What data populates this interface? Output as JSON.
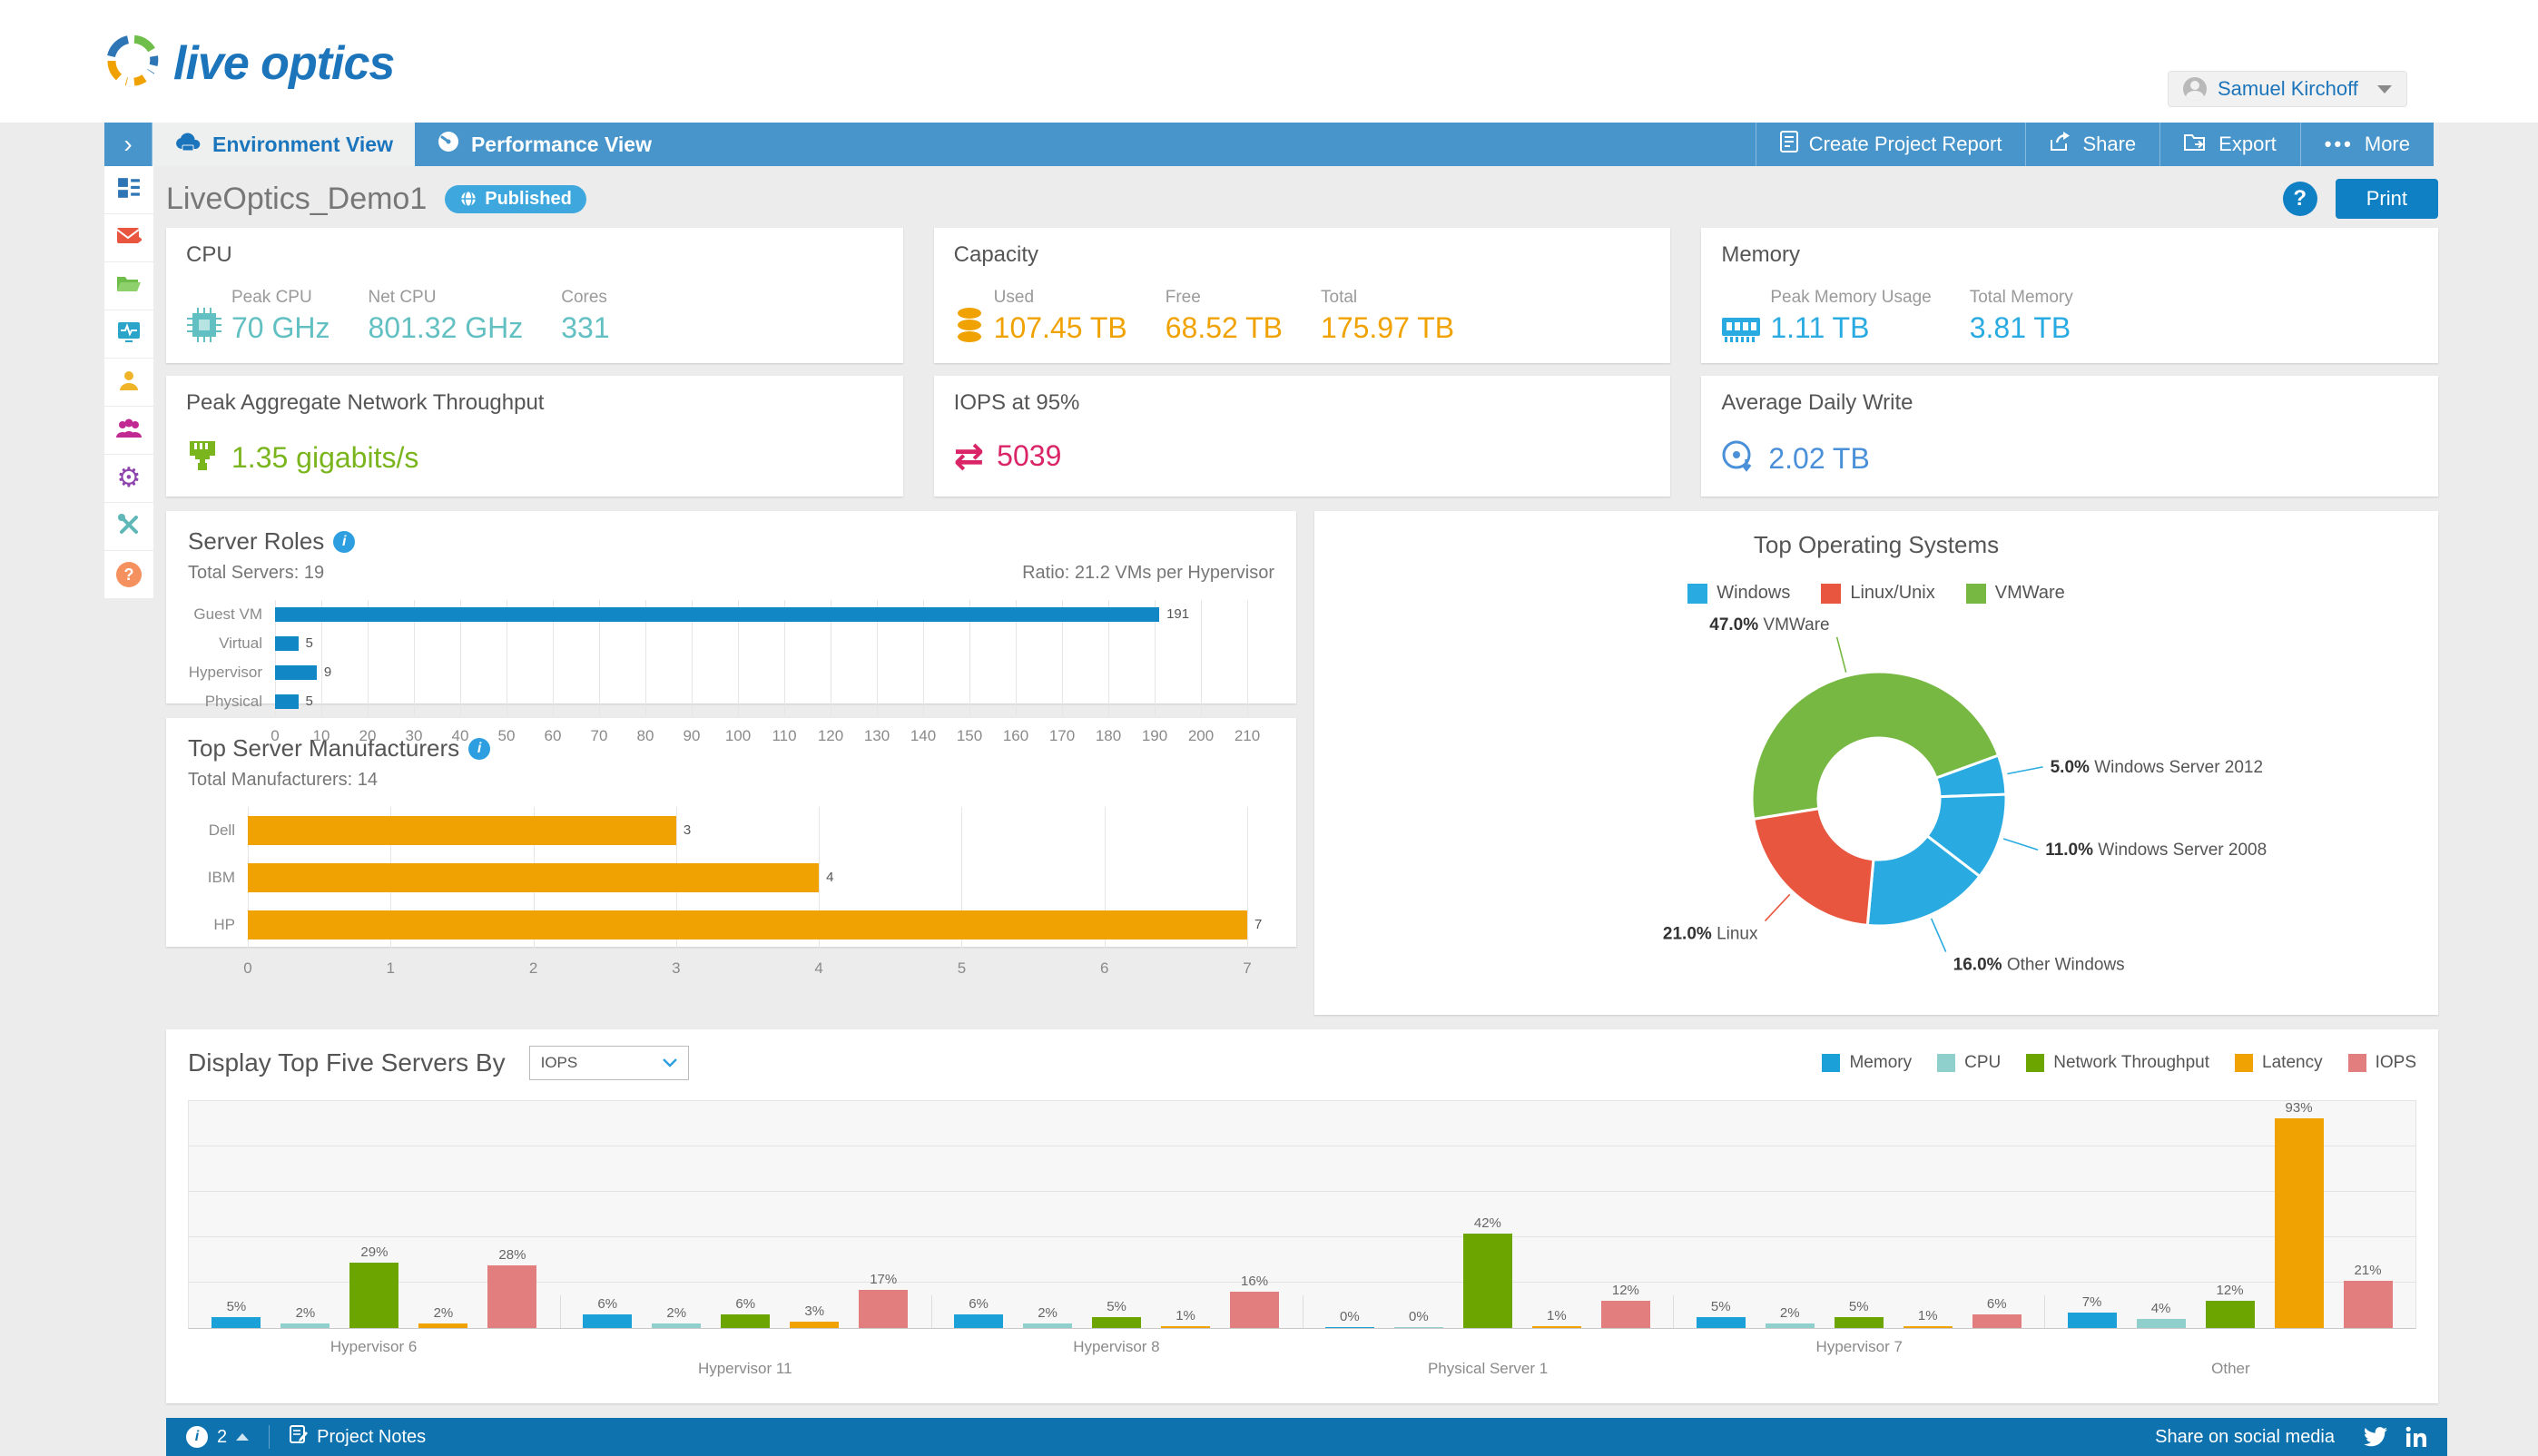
{
  "header": {
    "logo_text": "live optics",
    "user_name": "Samuel Kirchoff"
  },
  "nav": {
    "collapse_chevron": "›",
    "tabs": [
      {
        "label": "Environment View",
        "icon": "cloud-icon",
        "active": true
      },
      {
        "label": "Performance View",
        "icon": "gauge-icon",
        "active": false
      }
    ],
    "actions": [
      {
        "label": "Create Project Report",
        "icon": "report-icon"
      },
      {
        "label": "Share",
        "icon": "share-icon"
      },
      {
        "label": "Export",
        "icon": "export-folder-icon"
      },
      {
        "label": "More",
        "icon": "ellipsis-icon"
      }
    ]
  },
  "sidebar": {
    "items": [
      {
        "icon": "dashboard-icon"
      },
      {
        "icon": "mail-icon"
      },
      {
        "icon": "folder-icon"
      },
      {
        "icon": "activity-monitor-icon"
      },
      {
        "icon": "user-icon"
      },
      {
        "icon": "group-icon"
      },
      {
        "icon": "settings-gear-icon"
      },
      {
        "icon": "tools-icon"
      },
      {
        "icon": "help-icon"
      }
    ]
  },
  "page": {
    "title": "LiveOptics_Demo1",
    "badge": "Published",
    "help": "?",
    "print": "Print"
  },
  "cards": {
    "cpu": {
      "title": "CPU",
      "icon": "cpu-chip-icon",
      "color": "#62c0c2",
      "metrics": [
        {
          "label": "Peak CPU",
          "value": "70 GHz"
        },
        {
          "label": "Net CPU",
          "value": "801.32 GHz"
        },
        {
          "label": "Cores",
          "value": "331"
        }
      ]
    },
    "capacity": {
      "title": "Capacity",
      "icon": "storage-stack-icon",
      "color": "#f0a202",
      "metrics": [
        {
          "label": "Used",
          "value": "107.45 TB"
        },
        {
          "label": "Free",
          "value": "68.52 TB"
        },
        {
          "label": "Total",
          "value": "175.97 TB"
        }
      ]
    },
    "memory": {
      "title": "Memory",
      "icon": "memory-module-icon",
      "color": "#29abe2",
      "metrics": [
        {
          "label": "Peak Memory Usage",
          "value": "1.11 TB"
        },
        {
          "label": "Total Memory",
          "value": "3.81 TB"
        }
      ]
    },
    "network": {
      "title": "Peak Aggregate Network Throughput",
      "icon": "ethernet-icon",
      "color": "#7ab51d",
      "value": "1.35 gigabits/s"
    },
    "iops": {
      "title": "IOPS at 95%",
      "icon": "transfer-arrows-icon",
      "color": "#d92567",
      "value": "5039"
    },
    "daily_write": {
      "title": "Average Daily Write",
      "icon": "disc-write-icon",
      "color": "#4a90d9",
      "value": "2.02 TB"
    }
  },
  "chart_data": [
    {
      "id": "server-roles",
      "type": "bar",
      "orientation": "horizontal",
      "title": "Server Roles",
      "subtitle_left": "Total Servers: 19",
      "subtitle_right": "Ratio: 21.2 VMs per Hypervisor",
      "categories": [
        "Guest VM",
        "Virtual",
        "Hypervisor",
        "Physical"
      ],
      "values": [
        191,
        5,
        9,
        5
      ],
      "xlim": [
        0,
        210
      ],
      "tick_step": 10,
      "bar_color": "#1287c6",
      "grid": true
    },
    {
      "id": "top-manufacturers",
      "type": "bar",
      "orientation": "horizontal",
      "title": "Top Server Manufacturers",
      "subtitle_left": "Total Manufacturers: 14",
      "categories": [
        "Dell",
        "IBM",
        "HP"
      ],
      "values": [
        3,
        4,
        7
      ],
      "xlim": [
        0,
        7
      ],
      "tick_step": 1,
      "bar_color": "#f0a202",
      "grid": true
    },
    {
      "id": "top-os",
      "type": "pie",
      "donut": true,
      "title": "Top Operating Systems",
      "start_angle_deg": 260.8,
      "legend": [
        {
          "label": "Windows",
          "color": "#29abe2"
        },
        {
          "label": "Linux/Unix",
          "color": "#e8563f"
        },
        {
          "label": "VMWare",
          "color": "#77b843"
        }
      ],
      "slices": [
        {
          "label": "VMWare",
          "pct": 47.0,
          "color": "#77b843"
        },
        {
          "label": "Windows Server 2012",
          "pct": 5.0,
          "color": "#29abe2"
        },
        {
          "label": "Windows Server 2008",
          "pct": 11.0,
          "color": "#29abe2"
        },
        {
          "label": "Other Windows",
          "pct": 16.0,
          "color": "#29abe2"
        },
        {
          "label": "Linux",
          "pct": 21.0,
          "color": "#e8563f"
        }
      ]
    },
    {
      "id": "top-five-servers",
      "type": "bar",
      "grouped": true,
      "title": "Display Top Five Servers By",
      "dropdown_value": "IOPS",
      "ylim": [
        0,
        100
      ],
      "grid_step": 20,
      "legend_position": "top-right",
      "series": [
        {
          "name": "Memory",
          "color": "#1ba0d8"
        },
        {
          "name": "CPU",
          "color": "#8fd0cc"
        },
        {
          "name": "Network Throughput",
          "color": "#6da500"
        },
        {
          "name": "Latency",
          "color": "#f0a202"
        },
        {
          "name": "IOPS",
          "color": "#e27e7e"
        }
      ],
      "categories": [
        "Hypervisor 6",
        "Hypervisor 11",
        "Hypervisor 8",
        "Physical Server 1",
        "Hypervisor 7",
        "Other"
      ],
      "values": [
        [
          5,
          2,
          29,
          2,
          28
        ],
        [
          6,
          2,
          6,
          3,
          17
        ],
        [
          6,
          2,
          5,
          1,
          16
        ],
        [
          0,
          0,
          42,
          1,
          12
        ],
        [
          5,
          2,
          5,
          1,
          6
        ],
        [
          7,
          4,
          12,
          93,
          21
        ]
      ]
    }
  ],
  "footer": {
    "info_count": "2",
    "project_notes": "Project Notes",
    "share_text": "Share on social media",
    "icons": [
      "info-icon",
      "notes-icon",
      "twitter-icon",
      "linkedin-icon"
    ]
  }
}
